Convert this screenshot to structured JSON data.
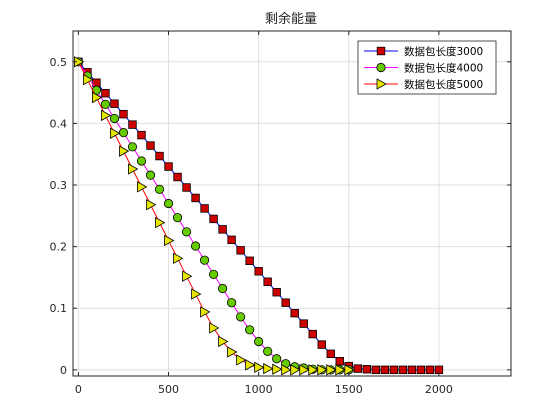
{
  "chart_data": {
    "type": "line",
    "title": "剩余能量",
    "xlabel": "",
    "ylabel": "",
    "xlim": [
      -30,
      2400
    ],
    "ylim": [
      -0.01,
      0.55
    ],
    "xticks": [
      0,
      500,
      1000,
      1500,
      2000
    ],
    "xtick_labels": [
      "0",
      "500",
      "1000",
      "1500",
      "2000"
    ],
    "yticks": [
      0,
      0.1,
      0.2,
      0.3,
      0.4,
      0.5
    ],
    "ytick_labels": [
      "0",
      "0.1",
      "0.2",
      "0.3",
      "0.4",
      "0.5"
    ],
    "grid": true,
    "legend_position": "top-right",
    "series": [
      {
        "name": "数据包长度3000",
        "line_color": "#0000ff",
        "marker": "square",
        "marker_face": "#cc0000",
        "x": [
          0,
          50,
          100,
          150,
          200,
          250,
          300,
          350,
          400,
          450,
          500,
          550,
          600,
          650,
          700,
          750,
          800,
          850,
          900,
          950,
          1000,
          1050,
          1100,
          1150,
          1200,
          1250,
          1300,
          1350,
          1400,
          1450,
          1500,
          1550,
          1600,
          1650,
          1700,
          1750,
          1800,
          1850,
          1900,
          1950,
          2000
        ],
        "y": [
          0.5,
          0.483,
          0.466,
          0.449,
          0.432,
          0.415,
          0.398,
          0.381,
          0.364,
          0.347,
          0.33,
          0.313,
          0.296,
          0.279,
          0.262,
          0.245,
          0.228,
          0.211,
          0.194,
          0.177,
          0.16,
          0.143,
          0.126,
          0.109,
          0.092,
          0.075,
          0.058,
          0.041,
          0.026,
          0.014,
          0.006,
          0.002,
          0.001,
          0.0,
          0.0,
          0.0,
          0.0,
          0.0,
          0.0,
          0.0,
          0.0
        ]
      },
      {
        "name": "数据包长度4000",
        "line_color": "#ff00ff",
        "marker": "circle",
        "marker_face": "#66cc00",
        "x": [
          0,
          50,
          100,
          150,
          200,
          250,
          300,
          350,
          400,
          450,
          500,
          550,
          600,
          650,
          700,
          750,
          800,
          850,
          900,
          950,
          1000,
          1050,
          1100,
          1150,
          1200,
          1250,
          1300,
          1350,
          1400,
          1450,
          1500
        ],
        "y": [
          0.5,
          0.477,
          0.454,
          0.431,
          0.408,
          0.385,
          0.362,
          0.339,
          0.316,
          0.293,
          0.27,
          0.247,
          0.224,
          0.201,
          0.178,
          0.155,
          0.132,
          0.109,
          0.086,
          0.065,
          0.046,
          0.03,
          0.018,
          0.01,
          0.005,
          0.003,
          0.001,
          0.0,
          0.0,
          0.0,
          0.0
        ]
      },
      {
        "name": "数据包长度5000",
        "line_color": "#ff0000",
        "marker": "triangle-right",
        "marker_face": "#e6e600",
        "x": [
          0,
          50,
          100,
          150,
          200,
          250,
          300,
          350,
          400,
          450,
          500,
          550,
          600,
          650,
          700,
          750,
          800,
          850,
          900,
          950,
          1000,
          1050,
          1100,
          1150,
          1200,
          1250,
          1300,
          1350,
          1400,
          1450,
          1500
        ],
        "y": [
          0.5,
          0.471,
          0.442,
          0.413,
          0.384,
          0.355,
          0.326,
          0.297,
          0.268,
          0.239,
          0.21,
          0.181,
          0.152,
          0.123,
          0.094,
          0.068,
          0.046,
          0.029,
          0.016,
          0.008,
          0.004,
          0.002,
          0.001,
          0.0,
          0.0,
          0.0,
          0.0,
          0.0,
          0.0,
          0.0,
          0.0
        ]
      }
    ]
  }
}
